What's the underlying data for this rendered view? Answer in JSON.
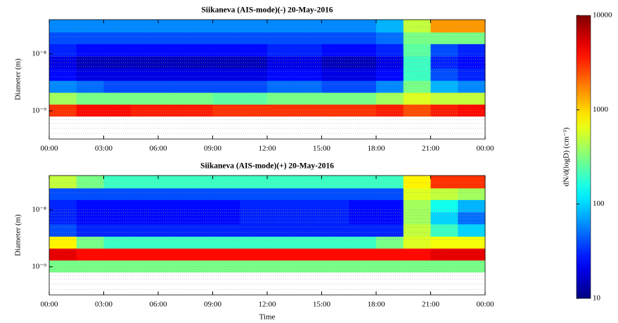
{
  "chart_data": [
    {
      "type": "heatmap",
      "title": "Siikaneva (AIS-mode)(-) 20-May-2016",
      "ylabel": "Diameter (m)",
      "xlim": [
        0,
        24
      ],
      "ylim": [
        3.2e-10,
        4e-08
      ],
      "yscale": "log",
      "grid": true,
      "xticks": [
        {
          "value": 0,
          "label": "00:00"
        },
        {
          "value": 3,
          "label": "03:00"
        },
        {
          "value": 6,
          "label": "06:00"
        },
        {
          "value": 9,
          "label": "09:00"
        },
        {
          "value": 12,
          "label": "12:00"
        },
        {
          "value": 15,
          "label": "15:00"
        },
        {
          "value": 18,
          "label": "18:00"
        },
        {
          "value": 21,
          "label": "21:00"
        },
        {
          "value": 24,
          "label": "00:00"
        }
      ],
      "yticks": [
        {
          "value": 1e-09,
          "label": "10⁻⁹"
        },
        {
          "value": 1e-08,
          "label": "10⁻⁸"
        }
      ],
      "xbins": [
        0,
        1.5,
        3,
        4.5,
        6,
        7.5,
        9,
        10.5,
        12,
        13.5,
        15,
        16.5,
        18,
        19.5,
        21,
        22.5,
        24
      ],
      "ybins": [
        8e-10,
        1.3e-09,
        2.1e-09,
        3.4e-09,
        5.6e-09,
        9.1e-09,
        1.5e-08,
        2.4e-08,
        4e-08
      ],
      "values": [
        [
          3000,
          4000,
          4000,
          3500,
          3500,
          3500,
          3000,
          3000,
          3000,
          3000,
          3000,
          3000,
          3500,
          2500,
          3500,
          4000
        ],
        [
          400,
          300,
          300,
          300,
          300,
          300,
          250,
          250,
          300,
          300,
          300,
          300,
          400,
          600,
          500,
          500
        ],
        [
          60,
          50,
          40,
          40,
          40,
          40,
          40,
          40,
          50,
          50,
          40,
          40,
          60,
          300,
          80,
          60
        ],
        [
          25,
          20,
          20,
          20,
          20,
          20,
          20,
          20,
          25,
          25,
          20,
          20,
          25,
          200,
          40,
          30
        ],
        [
          20,
          15,
          15,
          15,
          15,
          15,
          15,
          15,
          20,
          20,
          15,
          15,
          20,
          200,
          30,
          25
        ],
        [
          30,
          25,
          25,
          25,
          25,
          25,
          25,
          25,
          30,
          30,
          25,
          25,
          30,
          250,
          40,
          30
        ],
        [
          40,
          40,
          40,
          40,
          40,
          40,
          40,
          40,
          40,
          40,
          40,
          40,
          50,
          300,
          300,
          300
        ],
        [
          60,
          60,
          60,
          60,
          60,
          60,
          60,
          60,
          60,
          60,
          60,
          60,
          80,
          500,
          1500,
          1500
        ]
      ]
    },
    {
      "type": "heatmap",
      "title": "Siikaneva (AIS-mode)(+) 20-May-2016",
      "ylabel": "Diameter (m)",
      "xlabel": "Time",
      "xlim": [
        0,
        24
      ],
      "ylim": [
        3.2e-10,
        4e-08
      ],
      "yscale": "log",
      "grid": true,
      "xticks": [
        {
          "value": 0,
          "label": "00:00"
        },
        {
          "value": 3,
          "label": "03:00"
        },
        {
          "value": 6,
          "label": "06:00"
        },
        {
          "value": 9,
          "label": "09:00"
        },
        {
          "value": 12,
          "label": "12:00"
        },
        {
          "value": 15,
          "label": "15:00"
        },
        {
          "value": 18,
          "label": "18:00"
        },
        {
          "value": 21,
          "label": "21:00"
        },
        {
          "value": 24,
          "label": "00:00"
        }
      ],
      "yticks": [
        {
          "value": 1e-09,
          "label": "10⁻⁹"
        },
        {
          "value": 1e-08,
          "label": "10⁻⁸"
        }
      ],
      "xbins": [
        0,
        1.5,
        3,
        4.5,
        6,
        7.5,
        9,
        10.5,
        12,
        13.5,
        15,
        16.5,
        18,
        19.5,
        21,
        22.5,
        24
      ],
      "ybins": [
        8e-10,
        1.3e-09,
        2.1e-09,
        3.4e-09,
        5.6e-09,
        9.1e-09,
        1.5e-08,
        2.4e-08,
        4e-08
      ],
      "values": [
        [
          300,
          300,
          300,
          300,
          300,
          300,
          300,
          300,
          300,
          300,
          300,
          300,
          300,
          300,
          300,
          300
        ],
        [
          5000,
          4000,
          4000,
          4000,
          4000,
          4000,
          4000,
          4000,
          4000,
          4000,
          4000,
          4000,
          4000,
          4000,
          5000,
          5000
        ],
        [
          800,
          300,
          200,
          200,
          200,
          200,
          200,
          200,
          200,
          200,
          200,
          200,
          300,
          600,
          700,
          700
        ],
        [
          40,
          30,
          30,
          30,
          30,
          30,
          30,
          30,
          30,
          30,
          30,
          30,
          30,
          500,
          200,
          100
        ],
        [
          30,
          25,
          25,
          25,
          25,
          25,
          25,
          30,
          30,
          30,
          30,
          25,
          25,
          400,
          100,
          50
        ],
        [
          30,
          25,
          25,
          25,
          25,
          25,
          25,
          30,
          30,
          30,
          30,
          25,
          25,
          400,
          150,
          80
        ],
        [
          40,
          40,
          40,
          40,
          40,
          40,
          40,
          40,
          40,
          40,
          40,
          40,
          40,
          600,
          500,
          400
        ],
        [
          500,
          300,
          200,
          200,
          200,
          200,
          200,
          200,
          200,
          200,
          200,
          200,
          200,
          800,
          3000,
          3000
        ]
      ]
    }
  ],
  "colorbar": {
    "label": "dN/d(logD) (cm⁻³)",
    "colormap": "jet",
    "scale": "log",
    "zlim": [
      10,
      10000
    ],
    "zticks": [
      10,
      100,
      1000,
      10000
    ]
  }
}
